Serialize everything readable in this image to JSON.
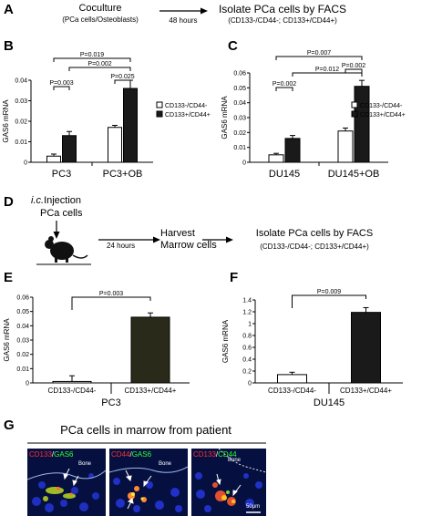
{
  "panels": {
    "A": {
      "label": "A",
      "left_box": [
        "Coculture",
        "(PCa cells/Osteoblasts)"
      ],
      "arrow_text": "48 hours",
      "right_box": [
        "Isolate PCa cells by FACS",
        "(CD133-/CD44-; CD133+/CD44+)"
      ]
    },
    "D": {
      "label": "D",
      "injection": [
        "i.c.Injection",
        "PCa cells"
      ],
      "arrow_text": "24 hours",
      "harvest": [
        "Harvest",
        "Marrow cells"
      ],
      "isolate": [
        "Isolate PCa cells by FACS",
        "(CD133-/CD44-; CD133+/CD44+)"
      ]
    },
    "G": {
      "label": "G",
      "title": "PCa cells in marrow from patient",
      "images": [
        {
          "marker1": "CD133",
          "sep": "/",
          "marker2": "GAS6",
          "bone": "Bone",
          "c1": "#ff3030",
          "c2": "#30ff30"
        },
        {
          "marker1": "CD44",
          "sep": "/",
          "marker2": "GAS6",
          "bone": "Bone",
          "c1": "#ff3030",
          "c2": "#30ff30"
        },
        {
          "marker1": "CD133",
          "sep": "/",
          "marker2": "CD44",
          "bone": "Bone",
          "c1": "#ff3030",
          "c2": "#30ff30"
        }
      ],
      "scale_bar": "50μm"
    }
  },
  "chart_data": [
    {
      "panel": "B",
      "type": "bar",
      "ylabel": "GAS6 mRNA",
      "ylim": [
        0,
        0.04
      ],
      "yticks": [
        0,
        0.01,
        0.02,
        0.03,
        0.04
      ],
      "categories": [
        "PC3",
        "PC3+OB"
      ],
      "series": [
        {
          "name": "CD133-/CD44-",
          "values": [
            0.003,
            0.017
          ],
          "errors": [
            0.001,
            0.001
          ],
          "color": "#ffffff"
        },
        {
          "name": "CD133+/CD44+",
          "values": [
            0.013,
            0.036
          ],
          "errors": [
            0.002,
            0.004
          ],
          "color": "#1a1a1a"
        }
      ],
      "annotations": [
        "P=0.003",
        "P=0.025",
        "P=0.002",
        "P=0.019"
      ]
    },
    {
      "panel": "C",
      "type": "bar",
      "ylabel": "GAS6 mRNA",
      "ylim": [
        0,
        0.06
      ],
      "yticks": [
        0,
        0.01,
        0.02,
        0.03,
        0.04,
        0.05,
        0.06
      ],
      "categories": [
        "DU145",
        "DU145+OB"
      ],
      "series": [
        {
          "name": "CD133-/CD44-",
          "values": [
            0.005,
            0.021
          ],
          "errors": [
            0.001,
            0.002
          ],
          "color": "#ffffff"
        },
        {
          "name": "CD133+/CD44+",
          "values": [
            0.016,
            0.051
          ],
          "errors": [
            0.002,
            0.004
          ],
          "color": "#1a1a1a"
        }
      ],
      "annotations": [
        "P=0.002",
        "P=0.012",
        "P=0.002",
        "P=0.007"
      ]
    },
    {
      "panel": "E",
      "type": "bar",
      "ylabel": "GAS6 mRNA",
      "xlabel": "PC3",
      "ylim": [
        0,
        0.06
      ],
      "yticks": [
        0,
        0.01,
        0.02,
        0.03,
        0.04,
        0.05,
        0.06
      ],
      "categories": [
        "CD133-/CD44-",
        "CD133+/CD44+"
      ],
      "values": [
        0.001,
        0.046
      ],
      "errors": [
        0.004,
        0.003
      ],
      "colors": [
        "#ffffff",
        "#2a2a1a"
      ],
      "annotations": [
        "P=0.003"
      ]
    },
    {
      "panel": "F",
      "type": "bar",
      "ylabel": "GAS6 mRNA",
      "xlabel": "DU145",
      "ylim": [
        0,
        1.4
      ],
      "yticks": [
        0,
        0.2,
        0.4,
        0.6,
        0.8,
        1,
        1.2,
        1.4
      ],
      "categories": [
        "CD133-/CD44-",
        "CD133+/CD44+"
      ],
      "values": [
        0.14,
        1.19
      ],
      "errors": [
        0.04,
        0.08
      ],
      "colors": [
        "#ffffff",
        "#1a1a1a"
      ],
      "annotations": [
        "P=0.009"
      ]
    }
  ]
}
